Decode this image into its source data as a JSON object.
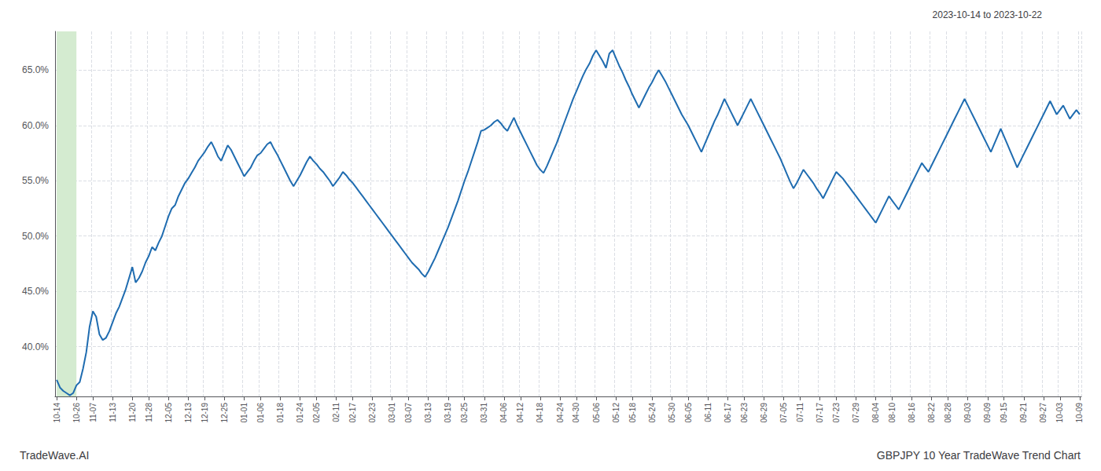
{
  "chart_data": {
    "type": "line",
    "title": "GBPJPY 10 Year TradeWave Trend Chart",
    "subtitle": "2023-10-14 to 2023-10-22",
    "annotations": [
      "TradeWave.AI"
    ],
    "color": "#1f6cb0",
    "grid": true,
    "highlight": {
      "from": "10-14",
      "to": "10-26",
      "color": "#d4ebd0"
    },
    "ylim": [
      0.355,
      0.685
    ],
    "yticks": [
      {
        "value": 0.4,
        "label": "40.0%"
      },
      {
        "value": 0.45,
        "label": "45.0%"
      },
      {
        "value": 0.5,
        "label": "50.0%"
      },
      {
        "value": 0.55,
        "label": "55.0%"
      },
      {
        "value": 0.6,
        "label": "60.0%"
      },
      {
        "value": 0.65,
        "label": "65.0%"
      }
    ],
    "categories": [
      "10-14",
      null,
      null,
      null,
      null,
      null,
      "10-26",
      null,
      null,
      null,
      null,
      "11-07",
      null,
      null,
      null,
      null,
      null,
      "11-13",
      null,
      null,
      null,
      null,
      null,
      "11-20",
      null,
      null,
      null,
      null,
      "11-28",
      null,
      null,
      null,
      null,
      null,
      "12-05",
      null,
      null,
      null,
      null,
      null,
      "12-13",
      null,
      null,
      null,
      null,
      "12-19",
      null,
      null,
      null,
      null,
      null,
      "12-25",
      null,
      null,
      null,
      null,
      null,
      "01-01",
      null,
      null,
      null,
      null,
      "01-06",
      null,
      null,
      null,
      null,
      null,
      "01-18",
      null,
      null,
      null,
      null,
      null,
      "01-24",
      null,
      null,
      null,
      null,
      "02-05",
      null,
      null,
      null,
      null,
      null,
      "02-11",
      null,
      null,
      null,
      null,
      "02-17",
      null,
      null,
      null,
      null,
      null,
      "02-23",
      null,
      null,
      null,
      null,
      null,
      "03-01",
      null,
      null,
      null,
      null,
      "03-07",
      null,
      null,
      null,
      null,
      null,
      "03-13",
      null,
      null,
      null,
      null,
      null,
      "03-19",
      null,
      null,
      null,
      null,
      "03-25",
      null,
      null,
      null,
      null,
      null,
      "03-31",
      null,
      null,
      null,
      null,
      null,
      "04-06",
      null,
      null,
      null,
      null,
      "04-12",
      null,
      null,
      null,
      null,
      null,
      "04-18",
      null,
      null,
      null,
      null,
      null,
      "04-24",
      null,
      null,
      null,
      null,
      "04-30",
      null,
      null,
      null,
      null,
      null,
      "05-06",
      null,
      null,
      null,
      null,
      null,
      "05-12",
      null,
      null,
      null,
      null,
      "05-18",
      null,
      null,
      null,
      null,
      null,
      "05-24",
      null,
      null,
      null,
      null,
      null,
      "05-30",
      null,
      null,
      null,
      null,
      "06-05",
      null,
      null,
      null,
      null,
      null,
      "06-11",
      null,
      null,
      null,
      null,
      null,
      "06-17",
      null,
      null,
      null,
      null,
      "06-23",
      null,
      null,
      null,
      null,
      null,
      "06-29",
      null,
      null,
      null,
      null,
      null,
      "07-05",
      null,
      null,
      null,
      null,
      "07-11",
      null,
      null,
      null,
      null,
      null,
      "07-17",
      null,
      null,
      null,
      null,
      "07-23",
      null,
      null,
      null,
      null,
      null,
      "07-29",
      null,
      null,
      null,
      null,
      null,
      "08-04",
      null,
      null,
      null,
      null,
      "08-10",
      null,
      null,
      null,
      null,
      null,
      "08-16",
      null,
      null,
      null,
      null,
      null,
      "08-22",
      null,
      null,
      null,
      null,
      "08-28",
      null,
      null,
      null,
      null,
      null,
      "09-03",
      null,
      null,
      null,
      null,
      null,
      "09-09",
      null,
      null,
      null,
      null,
      "09-15",
      null,
      null,
      null,
      null,
      null,
      "09-21",
      null,
      null,
      null,
      null,
      null,
      "09-27",
      null,
      null,
      null,
      null,
      "10-03",
      null,
      null,
      null,
      null,
      null,
      "10-09"
    ],
    "values": [
      0.37,
      0.363,
      0.36,
      0.358,
      0.356,
      0.358,
      0.365,
      0.368,
      0.38,
      0.395,
      0.418,
      0.432,
      0.427,
      0.411,
      0.406,
      0.408,
      0.414,
      0.422,
      0.43,
      0.436,
      0.444,
      0.452,
      0.462,
      0.472,
      0.458,
      0.462,
      0.468,
      0.476,
      0.482,
      0.49,
      0.487,
      0.494,
      0.5,
      0.509,
      0.518,
      0.525,
      0.528,
      0.536,
      0.542,
      0.548,
      0.552,
      0.557,
      0.562,
      0.568,
      0.572,
      0.576,
      0.581,
      0.585,
      0.579,
      0.572,
      0.568,
      0.575,
      0.582,
      0.578,
      0.572,
      0.566,
      0.56,
      0.554,
      0.558,
      0.562,
      0.568,
      0.573,
      0.575,
      0.579,
      0.583,
      0.585,
      0.579,
      0.574,
      0.568,
      0.562,
      0.556,
      0.55,
      0.545,
      0.55,
      0.555,
      0.561,
      0.567,
      0.572,
      0.568,
      0.565,
      0.561,
      0.558,
      0.554,
      0.55,
      0.545,
      0.549,
      0.553,
      0.558,
      0.555,
      0.551,
      0.548,
      0.544,
      0.54,
      0.536,
      0.532,
      0.528,
      0.524,
      0.52,
      0.516,
      0.512,
      0.508,
      0.504,
      0.5,
      0.496,
      0.492,
      0.488,
      0.484,
      0.48,
      0.476,
      0.473,
      0.47,
      0.466,
      0.463,
      0.468,
      0.474,
      0.48,
      0.487,
      0.494,
      0.501,
      0.508,
      0.516,
      0.524,
      0.532,
      0.541,
      0.55,
      0.558,
      0.567,
      0.576,
      0.585,
      0.595,
      0.596,
      0.598,
      0.6,
      0.603,
      0.605,
      0.602,
      0.598,
      0.595,
      0.601,
      0.607,
      0.6,
      0.594,
      0.588,
      0.582,
      0.576,
      0.57,
      0.564,
      0.56,
      0.557,
      0.563,
      0.57,
      0.577,
      0.584,
      0.592,
      0.6,
      0.608,
      0.616,
      0.624,
      0.631,
      0.638,
      0.645,
      0.651,
      0.656,
      0.663,
      0.668,
      0.663,
      0.658,
      0.652,
      0.665,
      0.668,
      0.661,
      0.654,
      0.648,
      0.641,
      0.635,
      0.628,
      0.622,
      0.616,
      0.622,
      0.628,
      0.634,
      0.639,
      0.645,
      0.65,
      0.645,
      0.64,
      0.634,
      0.628,
      0.622,
      0.616,
      0.61,
      0.605,
      0.6,
      0.594,
      0.588,
      0.582,
      0.576,
      0.583,
      0.59,
      0.597,
      0.604,
      0.61,
      0.617,
      0.624,
      0.618,
      0.612,
      0.606,
      0.6,
      0.606,
      0.612,
      0.618,
      0.624,
      0.618,
      0.612,
      0.606,
      0.6,
      0.594,
      0.588,
      0.582,
      0.576,
      0.57,
      0.563,
      0.556,
      0.549,
      0.543,
      0.548,
      0.554,
      0.56,
      0.556,
      0.552,
      0.548,
      0.543,
      0.539,
      0.534,
      0.54,
      0.546,
      0.552,
      0.558,
      0.555,
      0.552,
      0.548,
      0.544,
      0.54,
      0.536,
      0.532,
      0.528,
      0.524,
      0.52,
      0.516,
      0.512,
      0.518,
      0.524,
      0.53,
      0.536,
      0.532,
      0.528,
      0.524,
      0.53,
      0.536,
      0.542,
      0.548,
      0.554,
      0.56,
      0.566,
      0.562,
      0.558,
      0.564,
      0.57,
      0.576,
      0.582,
      0.588,
      0.594,
      0.6,
      0.606,
      0.612,
      0.618,
      0.624,
      0.618,
      0.612,
      0.606,
      0.6,
      0.594,
      0.588,
      0.582,
      0.576,
      0.583,
      0.59,
      0.597,
      0.59,
      0.583,
      0.576,
      0.569,
      0.562,
      0.568,
      0.574,
      0.58,
      0.586,
      0.592,
      0.598,
      0.604,
      0.61,
      0.616,
      0.622,
      0.616,
      0.61,
      0.614,
      0.618,
      0.612,
      0.606,
      0.61,
      0.614,
      0.61
    ]
  }
}
